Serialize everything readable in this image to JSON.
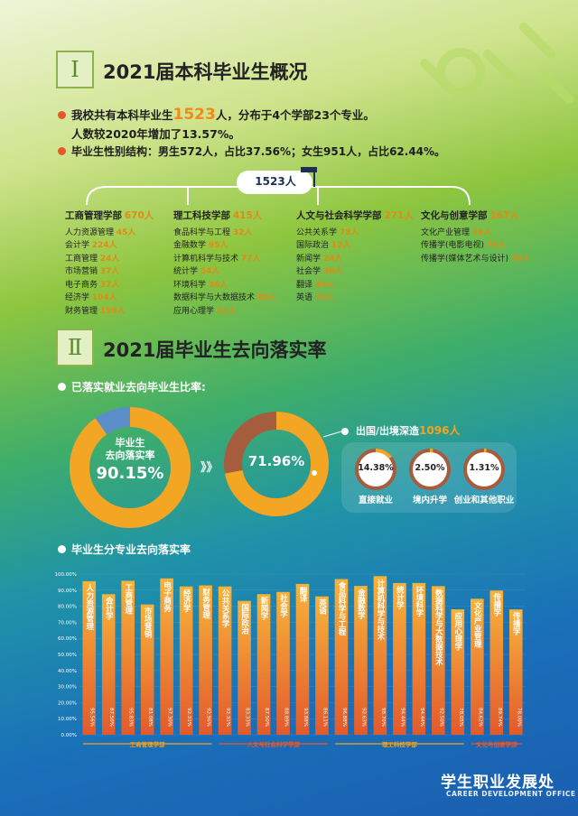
{
  "section1": {
    "numeral": "Ⅰ",
    "title": "2021届本科毕业生概况",
    "line1_a": "我校共有本科毕业生",
    "line1_num": "1523",
    "line1_b": "人，分布于4个学部23个专业。",
    "line2": "人数较2020年增加了13.57%。",
    "line3": "毕业生性别结构：男生572人，占比37.56%；女生951人，占比62.44%。",
    "total_badge": "1523人",
    "depts": [
      {
        "name": "工商管理学部",
        "count": "670人",
        "majors": [
          [
            "人力资源管理",
            "45人"
          ],
          [
            "会计学",
            "224人"
          ],
          [
            "工商管理",
            "24人"
          ],
          [
            "市场营销",
            "37人"
          ],
          [
            "电子商务",
            "37人"
          ],
          [
            "经济学",
            "104人"
          ],
          [
            "财务管理",
            "199人"
          ]
        ]
      },
      {
        "name": "理工科技学部",
        "count": "415人",
        "majors": [
          [
            "食品科学与工程",
            "32人"
          ],
          [
            "金融数学",
            "95人"
          ],
          [
            "计算机科学与技术",
            "77人"
          ],
          [
            "统计学",
            "54人"
          ],
          [
            "环境科学",
            "36人"
          ],
          [
            "数据科学与大数据技术",
            "80人"
          ],
          [
            "应用心理学",
            "41人"
          ]
        ]
      },
      {
        "name": "人文与社会科学学部",
        "count": "271人",
        "majors": [
          [
            "公共关系学",
            "78人"
          ],
          [
            "国际政治",
            "12人"
          ],
          [
            "新闻学",
            "24人"
          ],
          [
            "社会学",
            "36人"
          ],
          [
            "翻译",
            "49人"
          ],
          [
            "英语",
            "72人"
          ]
        ]
      },
      {
        "name": "文化与创意学部",
        "count": "167人",
        "majors": [
          [
            "文化产业管理",
            "39人"
          ],
          [
            "传播学(电影电视)",
            "78人"
          ],
          [
            "传播学(媒体艺术与设计)",
            "50人"
          ]
        ]
      }
    ]
  },
  "section2": {
    "numeral": "Ⅱ",
    "title": "2021届毕业生去向落实率",
    "sub1": "已落实就业去向毕业生比率:",
    "donut1": {
      "label1": "毕业生",
      "label2": "去向落实率",
      "value": "90.15%",
      "fraction": 0.9015
    },
    "arrows": "》》",
    "donut2": {
      "value": "71.96%",
      "fraction": 0.7196
    },
    "abroad": {
      "label": "出国/出境深造",
      "num": "1096人"
    },
    "small": [
      {
        "value": "14.38%",
        "label": "直接就业",
        "fraction": 0.1438
      },
      {
        "value": "2.50%",
        "label": "境内升学",
        "fraction": 0.025
      },
      {
        "value": "1.31%",
        "label": "创业和其他职业",
        "fraction": 0.0131
      }
    ],
    "sub2": "毕业生分专业去向落实率"
  },
  "chart_data": {
    "type": "bar",
    "ylim": [
      0,
      100
    ],
    "yticks": [
      "0.00%",
      "10.00%",
      "20.00%",
      "30.00%",
      "40.00%",
      "50.00%",
      "60.00%",
      "70.00%",
      "80.00%",
      "90.00%",
      "100.00%"
    ],
    "categories": [
      "人力资源管理",
      "会计学",
      "工商管理",
      "市场营销",
      "电子商务",
      "经济学",
      "财务管理",
      "公共关系学",
      "国际政治",
      "新闻学",
      "社会学",
      "翻译",
      "英语",
      "食品科学与工程",
      "金融数学",
      "计算机科学与技术",
      "统计学",
      "环境科学",
      "数据科学与大数据技术",
      "应用心理学",
      "文化产业管理",
      "传播学(电影电视)",
      "传播学(媒体艺术与设计)"
    ],
    "values": [
      95.56,
      87.5,
      95.83,
      81.08,
      97.3,
      92.31,
      92.96,
      92.31,
      83.33,
      87.5,
      88.89,
      93.88,
      86.11,
      96.88,
      92.63,
      98.7,
      94.44,
      94.44,
      92.5,
      78.05,
      84.62,
      89.74,
      78.0
    ],
    "value_labels": [
      "95.56%",
      "87.50%",
      "95.83%",
      "81.08%",
      "97.30%",
      "92.31%",
      "92.96%",
      "92.31%",
      "83.33%",
      "87.50%",
      "88.89%",
      "93.88%",
      "86.11%",
      "96.88%",
      "92.63%",
      "98.70%",
      "94.44%",
      "94.44%",
      "92.50%",
      "78.05%",
      "84.62%",
      "89.74%",
      "78.00%"
    ],
    "bar_labels": [
      "人力资源管理",
      "会计学",
      "工商管理",
      "市场营销",
      "电子商务",
      "经济学",
      "财务管理",
      "公共关系学",
      "国际政治",
      "新闻学",
      "社会学",
      "翻译",
      "英语",
      "食品科学与工程",
      "金融数学",
      "计算机科学与技术",
      "统计学",
      "环境科学",
      "数据科学与大数据技术",
      "应用心理学",
      "文化产业管理",
      "传播学",
      "传播学"
    ],
    "groups": [
      {
        "name": "工商管理学部",
        "count": 7,
        "color": "#f3a11e"
      },
      {
        "name": "人文与社会科学学部",
        "count": 6,
        "color": "#e8582c"
      },
      {
        "name": "理工科技学部",
        "count": 7,
        "color": "#f3a11e"
      },
      {
        "name": "文化与创意学部",
        "count": 3,
        "color": "#e8582c"
      }
    ],
    "bar_colors": {
      "top": "#f8b33a",
      "bottom": "#e25a2c"
    }
  },
  "footer": {
    "cn": "学生职业发展处",
    "en": "CAREER DEVELOPMENT OFFICE"
  },
  "colors": {
    "accent": "#f08a1c",
    "ring_gold": "#f2a623",
    "ring_blue": "#5b8ec9",
    "ring_brown": "#a55d3e"
  }
}
